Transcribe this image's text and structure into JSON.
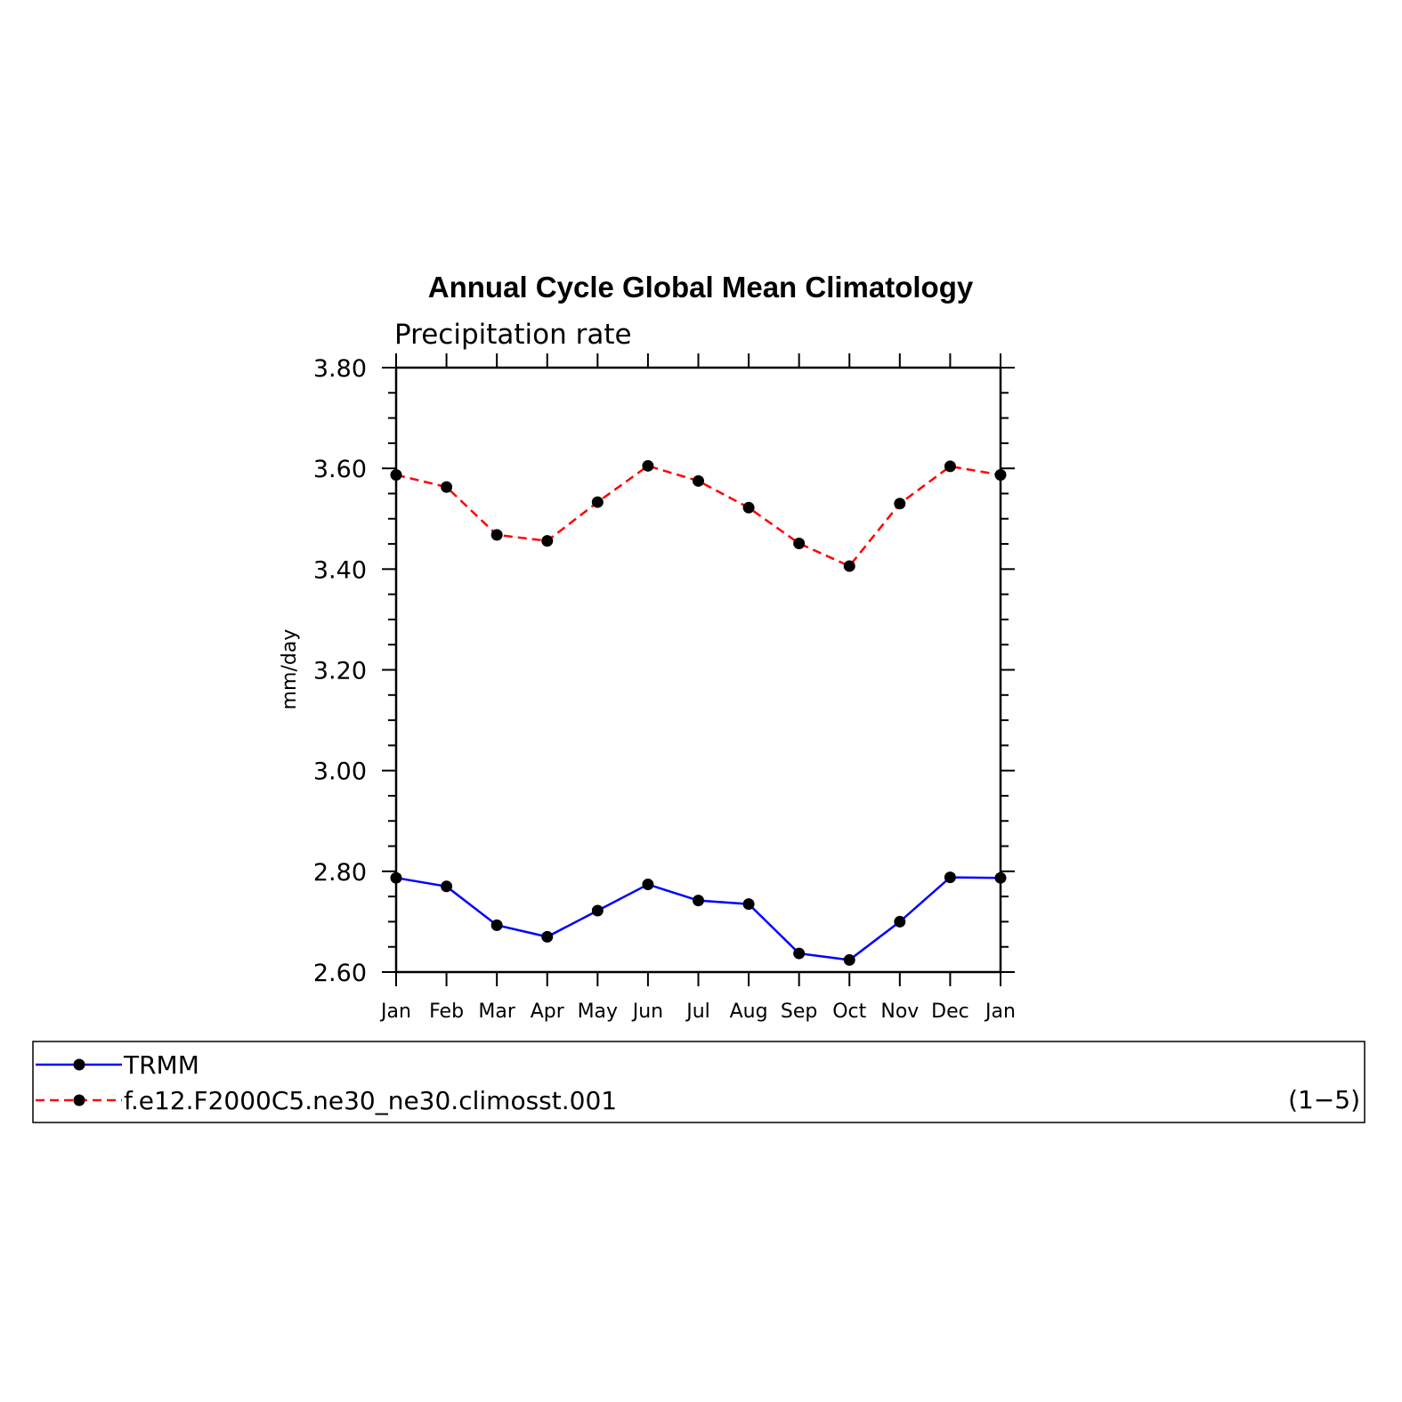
{
  "chart_data": {
    "type": "line",
    "title": "Annual Cycle Global Mean Climatology",
    "subtitle": "Precipitation rate",
    "xlabel": "",
    "ylabel": "mm/day",
    "categories": [
      "Jan",
      "Feb",
      "Mar",
      "Apr",
      "May",
      "Jun",
      "Jul",
      "Aug",
      "Sep",
      "Oct",
      "Nov",
      "Dec",
      "Jan"
    ],
    "ylim": [
      2.6,
      3.8
    ],
    "yticks": [
      "2.60",
      "2.80",
      "3.00",
      "3.20",
      "3.40",
      "3.60",
      "3.80"
    ],
    "series": [
      {
        "name": "TRMM",
        "color": "#0000ff",
        "style": "solid",
        "values": [
          2.787,
          2.77,
          2.693,
          2.67,
          2.722,
          2.774,
          2.742,
          2.735,
          2.637,
          2.624,
          2.7,
          2.788,
          2.787
        ]
      },
      {
        "name": "f.e12.F2000C5.ne30_ne30.climosst.001",
        "color": "#ff0000",
        "style": "dashed",
        "values": [
          3.587,
          3.563,
          3.468,
          3.456,
          3.533,
          3.605,
          3.575,
          3.522,
          3.451,
          3.406,
          3.53,
          3.604,
          3.587
        ]
      }
    ],
    "legend_placement": "bottom",
    "legend_note": "(1−5)",
    "grid": false
  }
}
